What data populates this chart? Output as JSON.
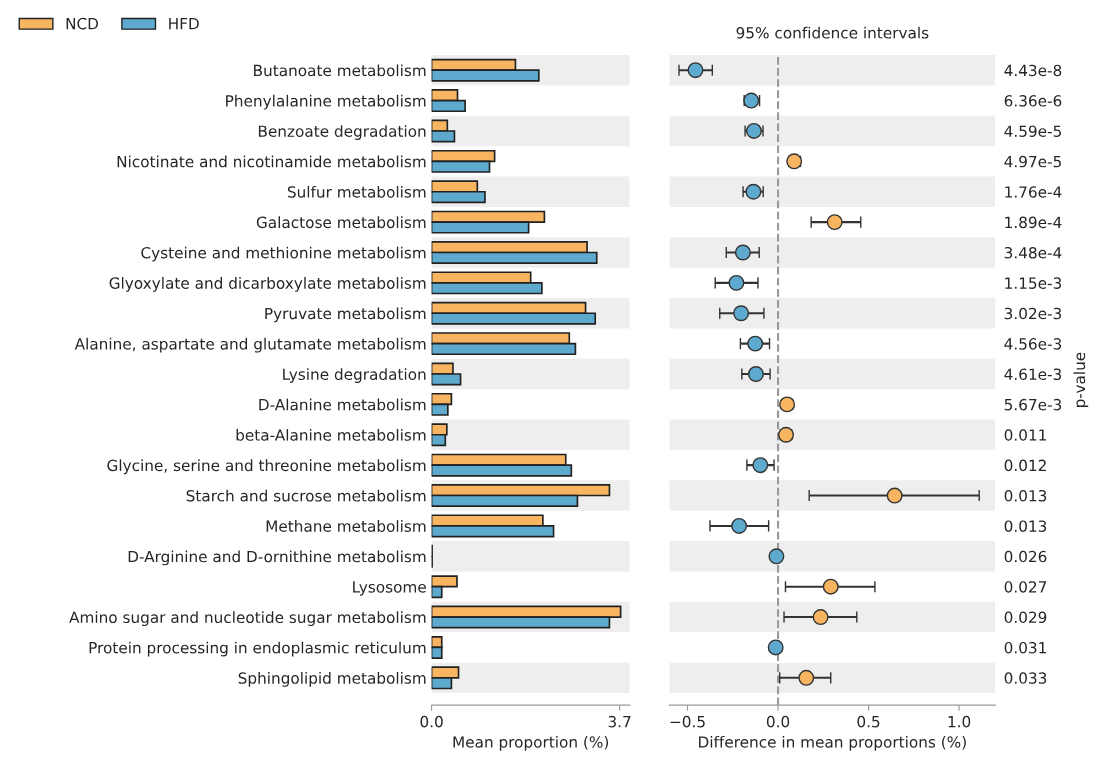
{
  "chart_data": [
    {
      "type": "bar",
      "orientation": "horizontal",
      "xlabel": "Mean proportion (%)",
      "legend": "top left",
      "categories": [
        "Butanoate metabolism",
        "Phenylalanine metabolism",
        "Benzoate degradation",
        "Nicotinate and nicotinamide metabolism",
        "Sulfur metabolism",
        "Galactose metabolism",
        "Cysteine and methionine metabolism",
        "Glyoxylate and dicarboxylate metabolism",
        "Pyruvate metabolism",
        "Alanine, aspartate and glutamate metabolism",
        "Lysine degradation",
        "D-Alanine metabolism",
        "beta-Alanine metabolism",
        "Glycine, serine and threonine metabolism",
        "Starch and sucrose metabolism",
        "Methane metabolism",
        "D-Arginine and D-ornithine metabolism",
        "Lysosome",
        "Amino sugar and nucleotide sugar metabolism",
        "Protein processing in endoplasmic reticulum",
        "Sphingolipid metabolism"
      ],
      "series": [
        {
          "name": "NCD",
          "color": "#f7b562",
          "values": [
            1.65,
            0.51,
            0.31,
            1.24,
            0.9,
            2.22,
            3.06,
            1.95,
            3.03,
            2.71,
            0.42,
            0.39,
            0.3,
            2.64,
            3.5,
            2.19,
            0.01,
            0.5,
            3.72,
            0.2,
            0.53
          ]
        },
        {
          "name": "HFD",
          "color": "#5eaacf",
          "values": [
            2.11,
            0.66,
            0.45,
            1.14,
            1.05,
            1.91,
            3.25,
            2.17,
            3.22,
            2.83,
            0.57,
            0.32,
            0.27,
            2.75,
            2.87,
            2.4,
            0.01,
            0.2,
            3.5,
            0.2,
            0.39
          ]
        }
      ],
      "xlim": [
        0,
        3.9
      ],
      "xticks": [
        {
          "value": 0,
          "label": "0.0"
        },
        {
          "value": 3.7,
          "label": "3.7"
        }
      ]
    },
    {
      "type": "scatter",
      "orientation": "horizontal",
      "title": "95% confidence intervals",
      "xlabel": "Difference in mean proportions (%)",
      "y2label": "p-value",
      "marker": "circle",
      "categories": [
        null,
        null,
        null,
        null,
        null,
        null,
        null,
        null,
        null,
        null,
        null,
        null,
        null,
        null,
        null,
        null,
        null,
        null,
        null,
        null,
        null
      ],
      "y2_categories": [
        "4.43e-8",
        "6.36e-6",
        "4.59e-5",
        "4.97e-5",
        "1.76e-4",
        "1.89e-4",
        "3.48e-4",
        "1.15e-3",
        "3.02e-3",
        "4.56e-3",
        "4.61e-3",
        "5.67e-3",
        "0.011",
        "0.012",
        "0.013",
        "0.013",
        "0.026",
        "0.027",
        "0.029",
        "0.031",
        "0.033"
      ],
      "series": [
        {
          "values": [
            -0.456,
            -0.148,
            -0.133,
            0.089,
            -0.136,
            0.313,
            -0.194,
            -0.23,
            -0.204,
            -0.126,
            -0.122,
            0.05,
            0.044,
            -0.098,
            0.644,
            -0.215,
            -0.009,
            0.291,
            0.235,
            -0.013,
            0.156
          ],
          "colors": [
            "#5eaacf",
            "#5eaacf",
            "#5eaacf",
            "#f7b562",
            "#5eaacf",
            "#f7b562",
            "#5eaacf",
            "#5eaacf",
            "#5eaacf",
            "#5eaacf",
            "#5eaacf",
            "#f7b562",
            "#f7b562",
            "#5eaacf",
            "#f7b562",
            "#5eaacf",
            "#5eaacf",
            "#f7b562",
            "#f7b562",
            "#5eaacf",
            "#f7b562"
          ],
          "errors": [
            [
              -0.547,
              -0.363
            ],
            [
              -0.187,
              -0.102
            ],
            [
              -0.182,
              -0.083
            ],
            [
              0.059,
              0.124
            ],
            [
              -0.193,
              -0.082
            ],
            [
              0.183,
              0.457
            ],
            [
              -0.286,
              -0.104
            ],
            [
              -0.347,
              -0.111
            ],
            [
              -0.322,
              -0.078
            ],
            [
              -0.208,
              -0.047
            ],
            [
              -0.2,
              -0.044
            ],
            [
              0.022,
              0.081
            ],
            [
              0.013,
              0.076
            ],
            [
              -0.172,
              -0.022
            ],
            [
              0.172,
              1.111
            ],
            [
              -0.376,
              -0.052
            ],
            null,
            [
              0.041,
              0.535
            ],
            [
              0.033,
              0.435
            ],
            null,
            [
              0.009,
              0.291
            ]
          ]
        }
      ],
      "ref_lines": [
        {
          "axis": "x",
          "value": 0,
          "color": "#999999",
          "line_style": "dashed"
        }
      ],
      "xlim": [
        -0.6,
        1.2
      ],
      "xticks": [
        {
          "value": -0.5,
          "label": "−0.5"
        },
        {
          "value": 0,
          "label": "0.0"
        },
        {
          "value": 0.5,
          "label": "0.5"
        },
        {
          "value": 1.0,
          "label": "1.0"
        }
      ]
    }
  ]
}
